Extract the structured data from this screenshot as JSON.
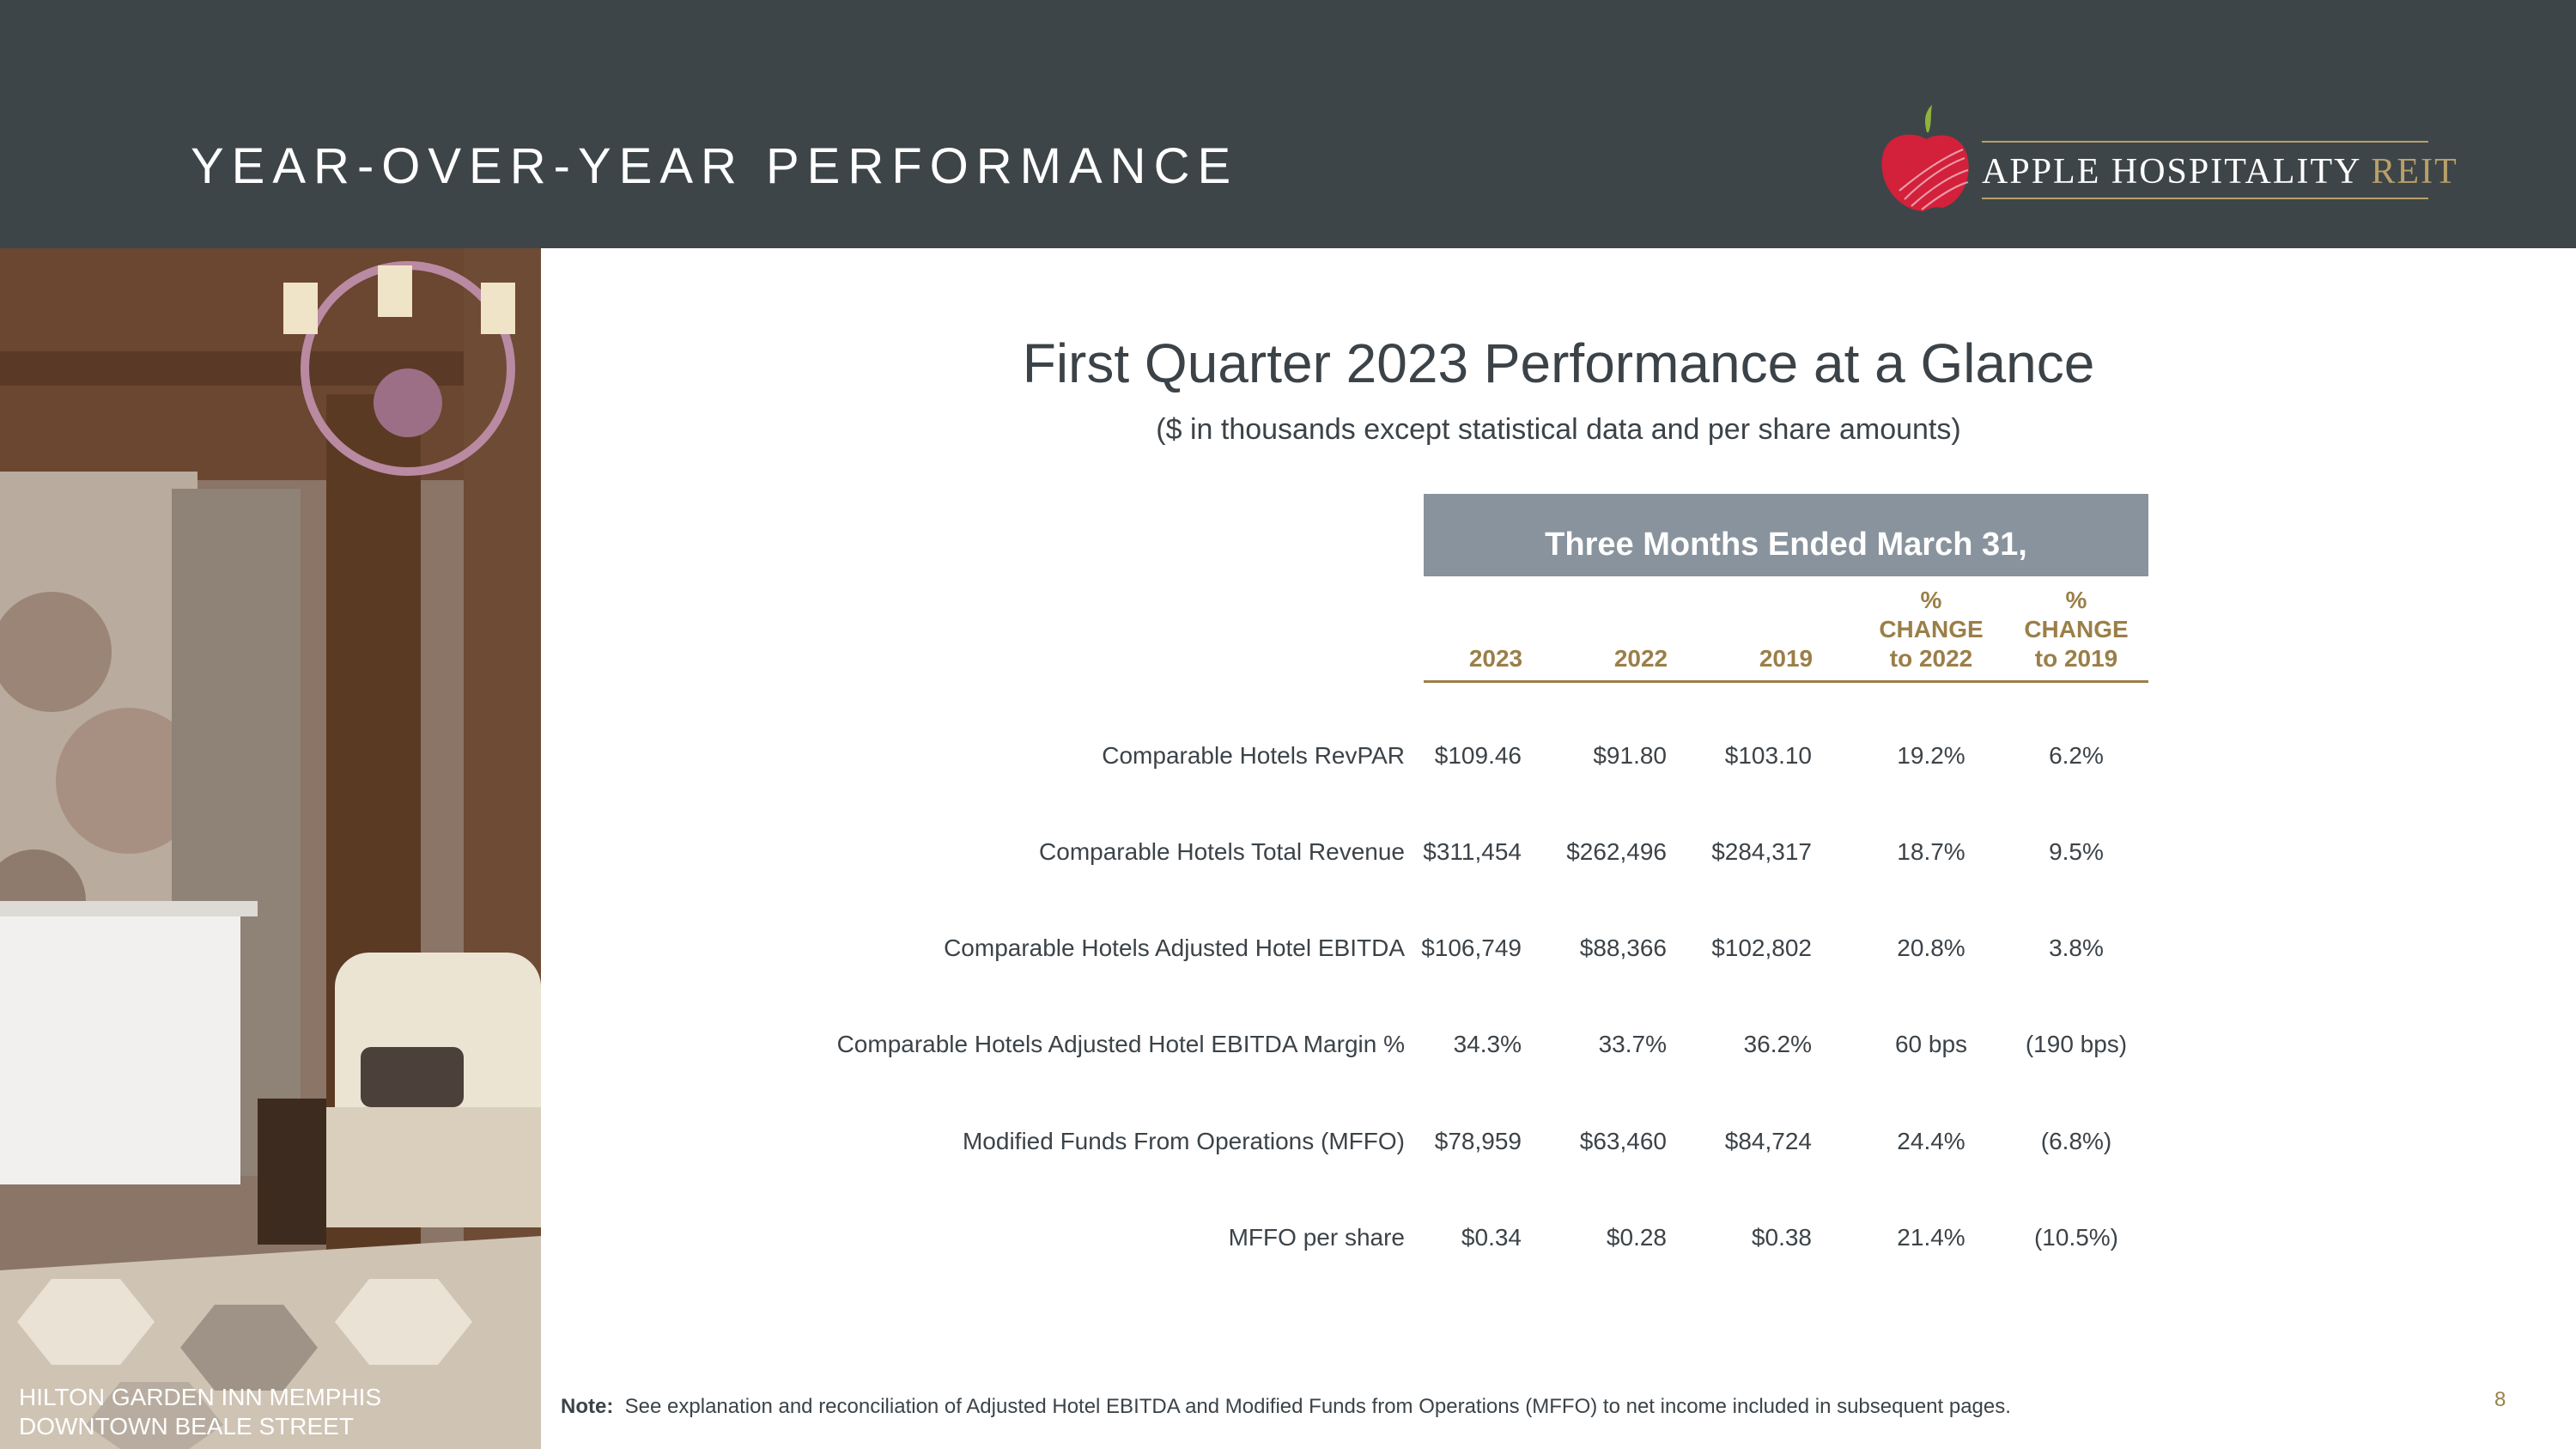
{
  "header": {
    "title": "YEAR-OVER-YEAR PERFORMANCE",
    "logo": {
      "name_main": "APPLE HOSPITALITY",
      "name_accent": "REIT",
      "icon": "apple-logo-icon",
      "colors": {
        "apple": "#d3203b",
        "leaf": "#8fb33b",
        "gold": "#b8a06a"
      }
    }
  },
  "photo": {
    "caption_line1": "HILTON GARDEN INN MEMPHIS",
    "caption_line2": "DOWNTOWN BEALE STREET"
  },
  "main": {
    "heading": "First Quarter 2023 Performance at a Glance",
    "subheading": "($ in thousands except statistical data and per share amounts)"
  },
  "table": {
    "band_title": "Three Months Ended March 31,",
    "columns": [
      "2023",
      "2022",
      "2019",
      "%\nCHANGE\nto 2022",
      "%\nCHANGE\nto 2019"
    ],
    "rows": [
      {
        "label": "Comparable Hotels RevPAR",
        "values": [
          "$109.46",
          "$91.80",
          "$103.10",
          "19.2%",
          "6.2%"
        ]
      },
      {
        "label": "Comparable Hotels Total Revenue",
        "values": [
          "$311,454",
          "$262,496",
          "$284,317",
          "18.7%",
          "9.5%"
        ]
      },
      {
        "label": "Comparable Hotels Adjusted Hotel EBITDA",
        "values": [
          "$106,749",
          "$88,366",
          "$102,802",
          "20.8%",
          "3.8%"
        ]
      },
      {
        "label": "Comparable Hotels Adjusted Hotel EBITDA Margin %",
        "values": [
          "34.3%",
          "33.7%",
          "36.2%",
          "60 bps",
          "(190 bps)"
        ]
      },
      {
        "label": "Modified Funds From Operations (MFFO)",
        "values": [
          "$78,959",
          "$63,460",
          "$84,724",
          "24.4%",
          "(6.8%)"
        ]
      },
      {
        "label": "MFFO per share",
        "values": [
          "$0.34",
          "$0.28",
          "$0.38",
          "21.4%",
          "(10.5%)"
        ]
      }
    ]
  },
  "footer": {
    "note_label": "Note:",
    "note_text": "See explanation and reconciliation of Adjusted Hotel EBITDA and Modified Funds from Operations (MFFO) to net income included in subsequent pages.",
    "page_number": "8"
  },
  "colors": {
    "header_bg": "#3e4548",
    "band_bg": "#88939d",
    "gold_text": "#9a7f48",
    "body_text": "#3c4348"
  }
}
